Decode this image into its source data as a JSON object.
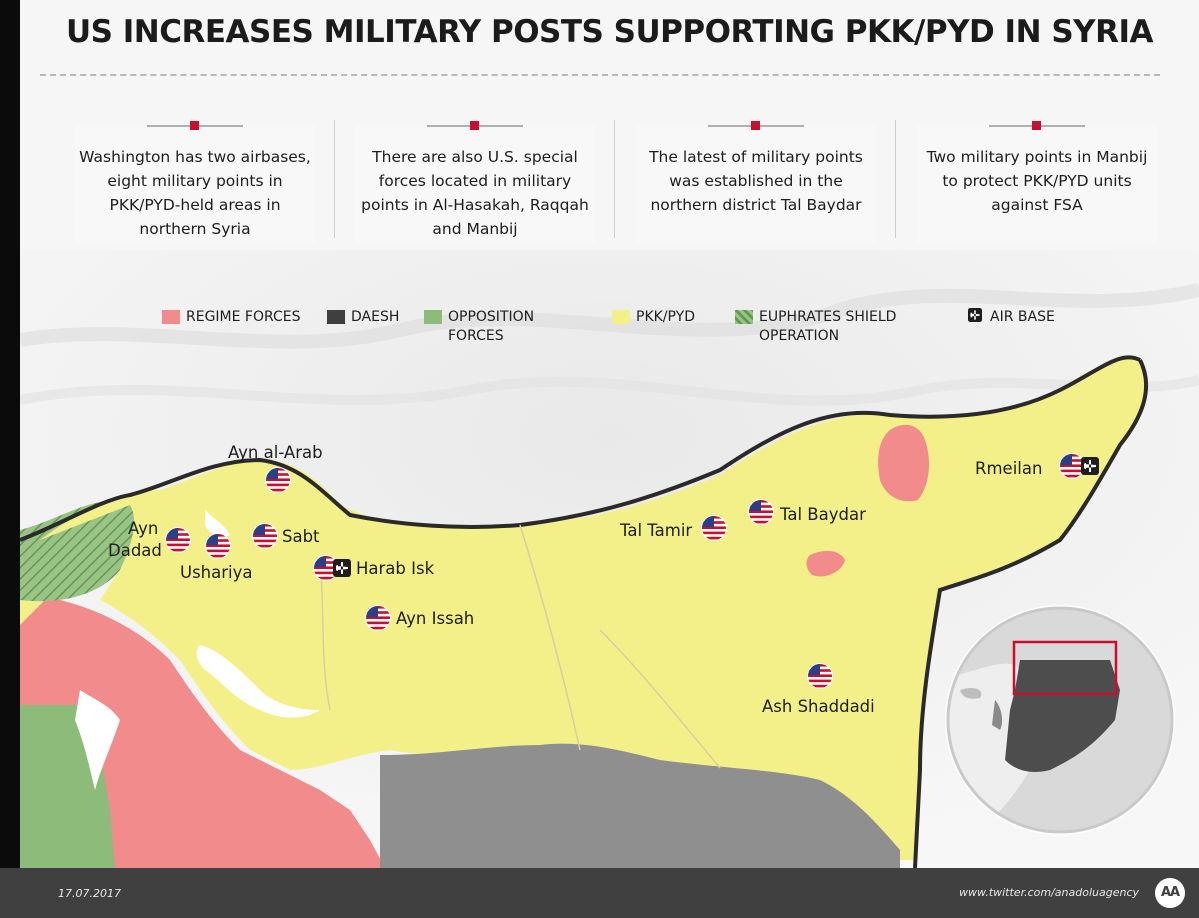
{
  "title": "US INCREASES MILITARY POSTS SUPPORTING PKK/PYD IN SYRIA",
  "info_boxes": [
    "Washington has two airbases, eight military points in PKK/PYD-held areas in northern Syria",
    "There are also U.S. special forces located in military points in Al-Hasakah, Raqqah and Manbij",
    "The latest of military points was established in the northern district Tal Baydar",
    "Two military points in Manbij to protect PKK/PYD units against FSA"
  ],
  "legend": [
    {
      "label": "REGIME FORCES",
      "color": "#f28c8c",
      "icon": "regime-swatch"
    },
    {
      "label": "DAESH",
      "color": "#3f3f3f",
      "icon": "daesh-swatch"
    },
    {
      "label": "OPPOSITION FORCES",
      "color": "#8dbb7a",
      "icon": "opposition-swatch"
    },
    {
      "label": "PKK/PYD",
      "color": "#f3f08a",
      "icon": "pkk-pyd-swatch"
    },
    {
      "label": "EUPHRATES SHIELD OPERATION",
      "color": "#6aa45a",
      "icon": "hatched-swatch"
    },
    {
      "label": "AIR BASE",
      "color": "#1e1e1e",
      "icon": "airplane-icon"
    }
  ],
  "cities": {
    "ayn_al_arab": "Ayn al-Arab",
    "ayn_dadad": "Ayn Dadad",
    "ushariya": "Ushariya",
    "sabt": "Sabt",
    "harab_isk": "Harab Isk",
    "ayn_issah": "Ayn Issah",
    "tal_tamir": "Tal Tamir",
    "tal_baydar": "Tal Baydar",
    "rmeilan": "Rmeilan",
    "ash_shaddadi": "Ash Shaddadi"
  },
  "footer": {
    "date": "17.07.2017",
    "twitter": "www.twitter.com/anadoluagency",
    "logo": "AA"
  }
}
